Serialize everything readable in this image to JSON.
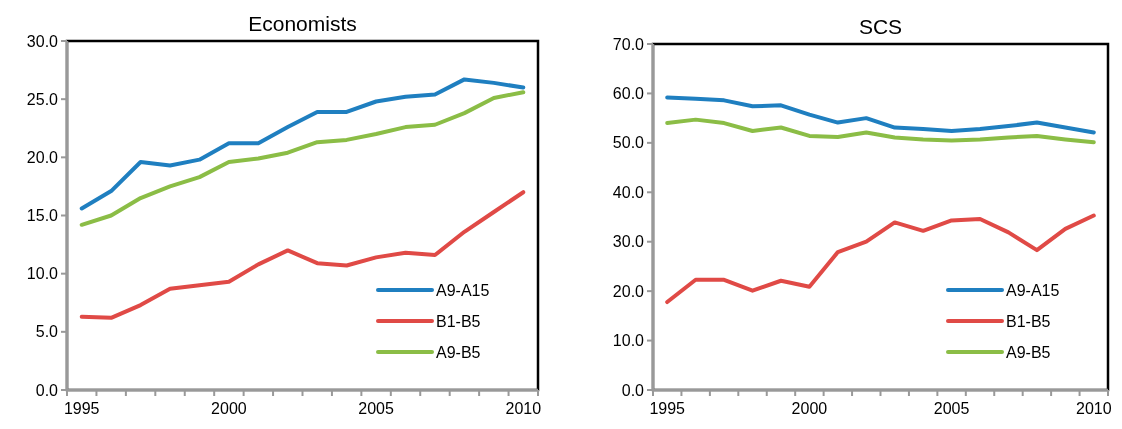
{
  "chart_data": [
    {
      "type": "line",
      "title": "Economists",
      "categories": [
        "1995",
        null,
        null,
        null,
        null,
        "2000",
        null,
        null,
        null,
        null,
        "2005",
        null,
        null,
        null,
        null,
        "2010"
      ],
      "ylim": [
        0,
        30
      ],
      "yticks": [
        {
          "value": 0,
          "label": "0.0"
        },
        {
          "value": 5,
          "label": "5.0"
        },
        {
          "value": 10,
          "label": "10.0"
        },
        {
          "value": 15,
          "label": "15.0"
        },
        {
          "value": 20,
          "label": "20.0"
        },
        {
          "value": 25,
          "label": "25.0"
        },
        {
          "value": 30,
          "label": "30.0"
        }
      ],
      "legend": "bottom right",
      "grid": false,
      "marker": "none",
      "series": [
        {
          "name": "A9-A15",
          "color": "#1f7fc0",
          "values": [
            15.6,
            17.1,
            19.6,
            19.3,
            19.8,
            21.2,
            21.2,
            22.6,
            23.9,
            23.9,
            24.8,
            25.2,
            25.4,
            26.7,
            26.4,
            26.0
          ]
        },
        {
          "name": "B1-B5",
          "color": "#e04a46",
          "values": [
            6.3,
            6.2,
            7.3,
            8.7,
            9.0,
            9.3,
            10.8,
            12.0,
            10.9,
            10.7,
            11.4,
            11.8,
            11.6,
            13.6,
            15.3,
            17.0
          ]
        },
        {
          "name": "A9-B5",
          "color": "#8bbd46",
          "values": [
            14.2,
            15.0,
            16.5,
            17.5,
            18.3,
            19.6,
            19.9,
            20.4,
            21.3,
            21.5,
            22.0,
            22.6,
            22.8,
            23.8,
            25.1,
            25.6
          ]
        }
      ]
    },
    {
      "type": "line",
      "title": "SCS",
      "categories": [
        "1995",
        null,
        null,
        null,
        null,
        "2000",
        null,
        null,
        null,
        null,
        "2005",
        null,
        null,
        null,
        null,
        "2010"
      ],
      "ylim": [
        0,
        70
      ],
      "yticks": [
        {
          "value": 0,
          "label": "0.0"
        },
        {
          "value": 10,
          "label": "10.0"
        },
        {
          "value": 20,
          "label": "20.0"
        },
        {
          "value": 30,
          "label": "30.0"
        },
        {
          "value": 40,
          "label": "40.0"
        },
        {
          "value": 50,
          "label": "50.0"
        },
        {
          "value": 60,
          "label": "60.0"
        },
        {
          "value": 70,
          "label": "70.0"
        }
      ],
      "legend": "bottom right",
      "grid": false,
      "marker": "none",
      "series": [
        {
          "name": "A9-A15",
          "color": "#1f7fc0",
          "values": [
            59.2,
            58.9,
            58.6,
            57.4,
            57.6,
            55.7,
            54.1,
            55.0,
            53.1,
            52.8,
            52.4,
            52.8,
            53.4,
            54.1,
            53.1,
            52.1
          ]
        },
        {
          "name": "B1-B5",
          "color": "#e04a46",
          "values": [
            17.8,
            22.3,
            22.3,
            20.1,
            22.1,
            20.9,
            27.9,
            30.0,
            33.9,
            32.2,
            34.3,
            34.6,
            31.9,
            28.3,
            32.6,
            35.3
          ]
        },
        {
          "name": "A9-B5",
          "color": "#8bbd46",
          "values": [
            54.0,
            54.7,
            54.0,
            52.4,
            53.1,
            51.4,
            51.2,
            52.1,
            51.1,
            50.7,
            50.5,
            50.7,
            51.1,
            51.4,
            50.7,
            50.1
          ]
        }
      ]
    }
  ]
}
